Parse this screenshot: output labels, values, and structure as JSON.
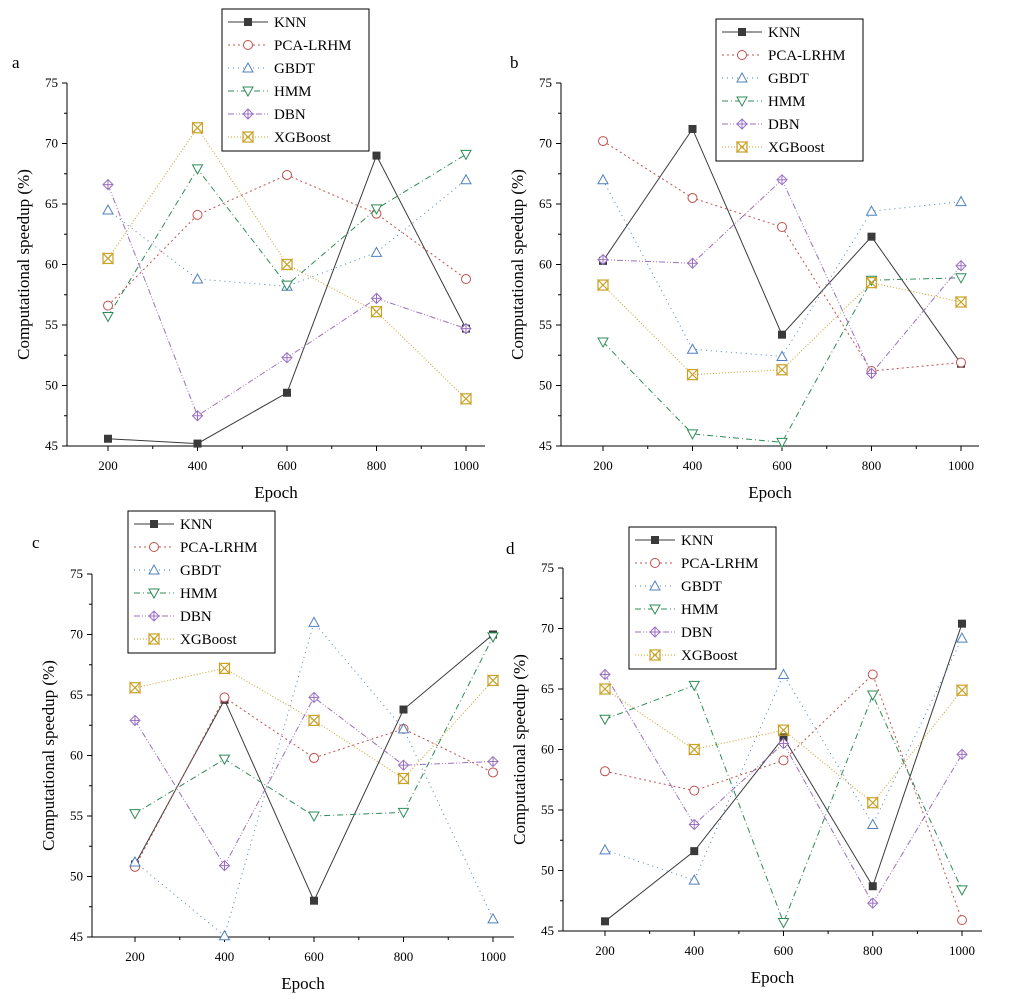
{
  "chart_data": [
    {
      "type": "line",
      "panel_label": "a",
      "xlabel": "Epoch",
      "ylabel": "Computational speedup (%)",
      "x": [
        200,
        400,
        600,
        800,
        1000
      ],
      "ylim": [
        45,
        75
      ],
      "yticks": [
        45,
        50,
        55,
        60,
        65,
        70,
        75
      ],
      "legend_position": "top-center",
      "series": [
        {
          "name": "KNN",
          "values": [
            45.6,
            45.2,
            49.4,
            69.0,
            54.7
          ]
        },
        {
          "name": "PCA-LRHM",
          "values": [
            56.6,
            64.1,
            67.4,
            64.2,
            58.8
          ]
        },
        {
          "name": "GBDT",
          "values": [
            64.5,
            58.8,
            58.2,
            61.0,
            67.0
          ]
        },
        {
          "name": "HMM",
          "values": [
            55.7,
            67.9,
            58.3,
            64.6,
            69.1
          ]
        },
        {
          "name": "DBN",
          "values": [
            66.6,
            47.5,
            52.3,
            57.2,
            54.7
          ]
        },
        {
          "name": "XGBoost",
          "values": [
            60.5,
            71.3,
            60.0,
            56.1,
            48.9
          ]
        }
      ]
    },
    {
      "type": "line",
      "panel_label": "b",
      "xlabel": "Epoch",
      "ylabel": "Computational speedup (%)",
      "x": [
        200,
        400,
        600,
        800,
        1000
      ],
      "ylim": [
        45,
        75
      ],
      "yticks": [
        45,
        50,
        55,
        60,
        65,
        70,
        75
      ],
      "legend_position": "top-right",
      "series": [
        {
          "name": "KNN",
          "values": [
            60.3,
            71.2,
            54.2,
            62.3,
            51.8
          ]
        },
        {
          "name": "PCA-LRHM",
          "values": [
            70.2,
            65.5,
            63.1,
            51.2,
            51.9
          ]
        },
        {
          "name": "GBDT",
          "values": [
            67.0,
            53.0,
            52.4,
            64.4,
            65.2
          ]
        },
        {
          "name": "HMM",
          "values": [
            53.6,
            46.0,
            45.3,
            58.7,
            58.9
          ]
        },
        {
          "name": "DBN",
          "values": [
            60.4,
            60.1,
            67.0,
            51.0,
            59.9
          ]
        },
        {
          "name": "XGBoost",
          "values": [
            58.3,
            50.9,
            51.3,
            58.5,
            56.9
          ]
        }
      ]
    },
    {
      "type": "line",
      "panel_label": "c",
      "xlabel": "Epoch",
      "ylabel": "Computational speedup (%)",
      "x": [
        200,
        400,
        600,
        800,
        1000
      ],
      "ylim": [
        45,
        75
      ],
      "yticks": [
        45,
        50,
        55,
        60,
        65,
        70,
        75
      ],
      "legend_position": "top-left",
      "series": [
        {
          "name": "KNN",
          "values": [
            51.0,
            64.6,
            48.0,
            63.8,
            70.0
          ]
        },
        {
          "name": "PCA-LRHM",
          "values": [
            50.8,
            64.8,
            59.8,
            62.2,
            58.6
          ]
        },
        {
          "name": "GBDT",
          "values": [
            51.2,
            45.1,
            71.0,
            62.2,
            46.5
          ]
        },
        {
          "name": "HMM",
          "values": [
            55.2,
            59.7,
            55.0,
            55.3,
            69.8
          ]
        },
        {
          "name": "DBN",
          "values": [
            62.9,
            50.9,
            64.8,
            59.2,
            59.5
          ]
        },
        {
          "name": "XGBoost",
          "values": [
            65.6,
            67.2,
            62.9,
            58.1,
            66.2
          ]
        }
      ]
    },
    {
      "type": "line",
      "panel_label": "d",
      "xlabel": "Epoch",
      "ylabel": "Computational speedup (%)",
      "x": [
        200,
        400,
        600,
        800,
        1000
      ],
      "ylim": [
        45,
        75
      ],
      "yticks": [
        45,
        50,
        55,
        60,
        65,
        70,
        75
      ],
      "legend_position": "top-left",
      "series": [
        {
          "name": "KNN",
          "values": [
            45.8,
            51.6,
            61.0,
            48.7,
            70.4
          ]
        },
        {
          "name": "PCA-LRHM",
          "values": [
            58.2,
            56.6,
            59.1,
            66.2,
            45.9
          ]
        },
        {
          "name": "GBDT",
          "values": [
            51.7,
            49.2,
            66.2,
            53.8,
            69.2
          ]
        },
        {
          "name": "HMM",
          "values": [
            62.5,
            65.3,
            45.7,
            64.5,
            48.4
          ]
        },
        {
          "name": "DBN",
          "values": [
            66.2,
            53.8,
            60.5,
            47.3,
            59.6
          ]
        },
        {
          "name": "XGBoost",
          "values": [
            65.0,
            60.0,
            61.6,
            55.6,
            64.9
          ]
        }
      ]
    }
  ],
  "series_styles": [
    {
      "name": "KNN",
      "color": "#3a3a3a",
      "dash": "",
      "marker": "square"
    },
    {
      "name": "PCA-LRHM",
      "color": "#c0504d",
      "dash": "2,3",
      "marker": "circle"
    },
    {
      "name": "GBDT",
      "color": "#4f81bd",
      "dash": "1,4",
      "marker": "triangle-up"
    },
    {
      "name": "HMM",
      "color": "#2e8b57",
      "dash": "6,3,1,3",
      "marker": "triangle-down"
    },
    {
      "name": "DBN",
      "color": "#9a6fc1",
      "dash": "6,2,1,2,1,2",
      "marker": "diamond-cross"
    },
    {
      "name": "XGBoost",
      "color": "#c9a227",
      "dash": "1,2",
      "marker": "bowtie"
    }
  ]
}
